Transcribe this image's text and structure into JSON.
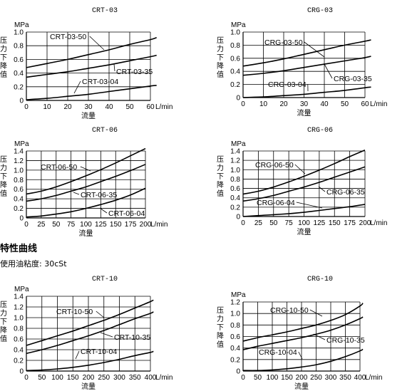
{
  "section_title": "特性曲线",
  "viscosity_note": "使用油粘度: 30cSt",
  "chart_data": [
    {
      "type": "line",
      "title": "CRT-03",
      "y_unit": "MPa",
      "ylabel": "压力下降值",
      "xlabel": "流量",
      "x_unit": "L/min",
      "xlim": [
        0,
        60
      ],
      "ylim": [
        0,
        1.0
      ],
      "xticks": [
        0,
        10,
        20,
        30,
        40,
        50,
        60
      ],
      "yticks": [
        0,
        0.2,
        0.4,
        0.6,
        0.8,
        1.0
      ],
      "ytick_labels": [
        "0",
        "0.2",
        "0.4",
        "0.6",
        "0.8",
        "1.0"
      ],
      "grid": true,
      "series": [
        {
          "name": "CRT-03-50",
          "x": [
            0,
            10,
            20,
            30,
            40,
            50,
            60,
            63
          ],
          "y": [
            0.48,
            0.54,
            0.6,
            0.67,
            0.74,
            0.82,
            0.89,
            0.92
          ]
        },
        {
          "name": "CRT-03-35",
          "x": [
            0,
            10,
            20,
            30,
            40,
            50,
            60,
            63
          ],
          "y": [
            0.34,
            0.38,
            0.42,
            0.47,
            0.52,
            0.58,
            0.64,
            0.66
          ]
        },
        {
          "name": "CRT-03-04",
          "x": [
            0,
            10,
            20,
            30,
            40,
            50,
            60,
            63
          ],
          "y": [
            0.01,
            0.03,
            0.06,
            0.09,
            0.13,
            0.17,
            0.21,
            0.22
          ]
        }
      ]
    },
    {
      "type": "line",
      "title": "CRG-03",
      "y_unit": "MPa",
      "ylabel": "压力下降值",
      "xlabel": "流量",
      "x_unit": "L/min",
      "xlim": [
        0,
        60
      ],
      "ylim": [
        0,
        1.0
      ],
      "xticks": [
        0,
        10,
        20,
        30,
        40,
        50,
        60
      ],
      "yticks": [
        0,
        0.2,
        0.4,
        0.6,
        0.8,
        1.0
      ],
      "ytick_labels": [
        "0",
        "0.2",
        "0.4",
        "0.6",
        "0.8",
        "1.0"
      ],
      "grid": true,
      "series": [
        {
          "name": "CRG-03-50",
          "x": [
            0,
            10,
            20,
            30,
            40,
            50,
            60,
            63
          ],
          "y": [
            0.48,
            0.53,
            0.59,
            0.66,
            0.73,
            0.8,
            0.86,
            0.88
          ]
        },
        {
          "name": "CRG-03-35",
          "x": [
            0,
            10,
            20,
            30,
            40,
            50,
            60,
            63
          ],
          "y": [
            0.34,
            0.37,
            0.41,
            0.46,
            0.51,
            0.56,
            0.61,
            0.63
          ]
        },
        {
          "name": "CRG-03-04",
          "x": [
            0,
            10,
            20,
            30,
            40,
            50,
            60,
            63
          ],
          "y": [
            0.0,
            0.01,
            0.03,
            0.05,
            0.08,
            0.11,
            0.15,
            0.16
          ]
        }
      ]
    },
    {
      "type": "line",
      "title": "CRT-06",
      "y_unit": "MPa",
      "ylabel": "压力下降值",
      "xlabel": "流量",
      "x_unit": "L/min",
      "xlim": [
        0,
        200
      ],
      "ylim": [
        0,
        1.4
      ],
      "xticks": [
        0,
        25,
        50,
        75,
        100,
        125,
        150,
        175,
        200
      ],
      "yticks": [
        0,
        0.2,
        0.4,
        0.6,
        0.8,
        1.0,
        1.2,
        1.4
      ],
      "ytick_labels": [
        "0",
        "0.2",
        "0.4",
        "0.6",
        "0.8",
        "1.0",
        "1.2",
        "1.4"
      ],
      "grid": true,
      "series": [
        {
          "name": "CRT-06-50",
          "x": [
            0,
            25,
            50,
            75,
            100,
            125,
            150,
            175,
            200
          ],
          "y": [
            0.5,
            0.56,
            0.65,
            0.76,
            0.88,
            1.01,
            1.15,
            1.3,
            1.45
          ]
        },
        {
          "name": "CRT-06-35",
          "x": [
            0,
            25,
            50,
            75,
            100,
            125,
            150,
            175,
            200
          ],
          "y": [
            0.35,
            0.4,
            0.47,
            0.56,
            0.65,
            0.76,
            0.87,
            0.99,
            1.12
          ]
        },
        {
          "name": "CRT-06-04",
          "x": [
            0,
            25,
            50,
            75,
            100,
            125,
            150,
            175,
            200
          ],
          "y": [
            0.02,
            0.04,
            0.08,
            0.13,
            0.2,
            0.28,
            0.37,
            0.48,
            0.62
          ]
        }
      ]
    },
    {
      "type": "line",
      "title": "CRG-06",
      "y_unit": "MPa",
      "ylabel": "压力下降值",
      "xlabel": "流量",
      "x_unit": "L/min",
      "xlim": [
        0,
        200
      ],
      "ylim": [
        0,
        1.4
      ],
      "xticks": [
        0,
        25,
        50,
        75,
        100,
        125,
        150,
        175,
        200
      ],
      "yticks": [
        0,
        0.2,
        0.4,
        0.6,
        0.8,
        1.0,
        1.2,
        1.4
      ],
      "ytick_labels": [
        "0",
        "0.2",
        "0.4",
        "0.6",
        "0.8",
        "1.0",
        "1.2",
        "1.4"
      ],
      "grid": true,
      "series": [
        {
          "name": "CRG-06-50",
          "x": [
            0,
            25,
            50,
            75,
            100,
            125,
            150,
            175,
            200
          ],
          "y": [
            0.48,
            0.54,
            0.63,
            0.74,
            0.86,
            0.99,
            1.13,
            1.28,
            1.42
          ]
        },
        {
          "name": "CRG-06-35",
          "x": [
            0,
            25,
            50,
            75,
            100,
            125,
            150,
            175,
            200
          ],
          "y": [
            0.33,
            0.38,
            0.45,
            0.54,
            0.63,
            0.73,
            0.84,
            0.95,
            1.06
          ]
        },
        {
          "name": "CRG-06-04",
          "x": [
            0,
            25,
            50,
            75,
            100,
            125,
            150,
            175,
            200
          ],
          "y": [
            0.0,
            0.02,
            0.04,
            0.06,
            0.09,
            0.13,
            0.17,
            0.21,
            0.26
          ]
        }
      ]
    },
    {
      "type": "line",
      "title": "CRT-10",
      "y_unit": "MPa",
      "ylabel": "压力下降值",
      "xlabel": "流量",
      "x_unit": "L/min",
      "xlim": [
        0,
        400
      ],
      "ylim": [
        0,
        1.4
      ],
      "xticks": [
        0,
        50,
        100,
        150,
        200,
        250,
        300,
        350,
        400
      ],
      "yticks": [
        0,
        0.2,
        0.4,
        0.6,
        0.8,
        1.0,
        1.2,
        1.4
      ],
      "ytick_labels": [
        "0",
        "0.2",
        "0.4",
        "0.6",
        "0.8",
        "1.0",
        "1.2",
        "1.4"
      ],
      "grid": true,
      "series": [
        {
          "name": "CRT-10-50",
          "x": [
            0,
            50,
            100,
            150,
            200,
            250,
            300,
            350,
            400,
            410
          ],
          "y": [
            0.48,
            0.57,
            0.66,
            0.75,
            0.85,
            0.95,
            1.06,
            1.18,
            1.3,
            1.33
          ]
        },
        {
          "name": "CRT-10-35",
          "x": [
            0,
            50,
            100,
            150,
            200,
            250,
            300,
            350,
            400,
            410
          ],
          "y": [
            0.33,
            0.4,
            0.48,
            0.57,
            0.66,
            0.76,
            0.87,
            0.98,
            1.08,
            1.11
          ]
        },
        {
          "name": "CRT-10-04",
          "x": [
            0,
            50,
            100,
            150,
            200,
            250,
            300,
            350,
            400,
            410
          ],
          "y": [
            0.01,
            0.02,
            0.04,
            0.07,
            0.11,
            0.16,
            0.22,
            0.29,
            0.35,
            0.37
          ]
        }
      ]
    },
    {
      "type": "line",
      "title": "CRG-10",
      "y_unit": "MPa",
      "ylabel": "压力下降值",
      "xlabel": "流量",
      "x_unit": "L/min",
      "xlim": [
        0,
        400
      ],
      "ylim": [
        0,
        1.2
      ],
      "xticks": [
        0,
        50,
        100,
        150,
        200,
        250,
        300,
        350,
        400
      ],
      "yticks": [
        0,
        0.2,
        0.4,
        0.6,
        0.8,
        1.0,
        1.2
      ],
      "ytick_labels": [
        "0",
        "0.2",
        "0.4",
        "0.6",
        "0.8",
        "1.0",
        "1.2"
      ],
      "grid": true,
      "series": [
        {
          "name": "CRG-10-50",
          "x": [
            0,
            50,
            100,
            150,
            200,
            250,
            300,
            350,
            400,
            410
          ],
          "y": [
            0.52,
            0.58,
            0.63,
            0.68,
            0.74,
            0.8,
            0.88,
            0.98,
            1.13,
            1.18
          ]
        },
        {
          "name": "CRG-10-35",
          "x": [
            0,
            50,
            100,
            150,
            200,
            250,
            300,
            350,
            400,
            410
          ],
          "y": [
            0.37,
            0.43,
            0.48,
            0.53,
            0.58,
            0.64,
            0.71,
            0.8,
            0.91,
            0.94
          ]
        },
        {
          "name": "CRG-10-04",
          "x": [
            0,
            50,
            100,
            150,
            200,
            250,
            300,
            350,
            400,
            410
          ],
          "y": [
            0.01,
            0.01,
            0.02,
            0.04,
            0.07,
            0.11,
            0.17,
            0.25,
            0.35,
            0.38
          ]
        }
      ]
    }
  ]
}
